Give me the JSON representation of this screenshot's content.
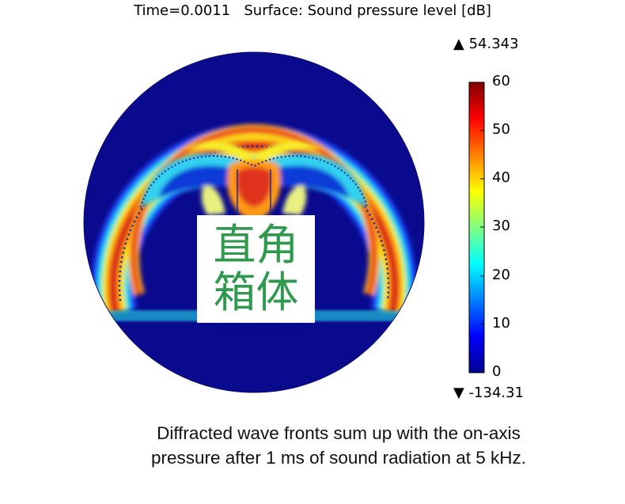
{
  "header": {
    "time": "Time=0.0011",
    "surface": "Surface: Sound pressure level [dB]"
  },
  "colorbar": {
    "max_marker": "▲ 54.343",
    "min_marker": "▼ -134.31",
    "ticks": [
      "60",
      "50",
      "40",
      "30",
      "20",
      "10",
      "0"
    ],
    "range": [
      0,
      60
    ]
  },
  "overlay_label": "直角箱体",
  "caption": {
    "line1": "Diffracted wave fronts sum up with the on-axis",
    "line2": "pressure after 1 ms of sound radiation at 5 kHz."
  },
  "colors": {
    "background_field": "#0a0a8e",
    "hot": "#c81818",
    "label_green": "#2f9a4e"
  }
}
